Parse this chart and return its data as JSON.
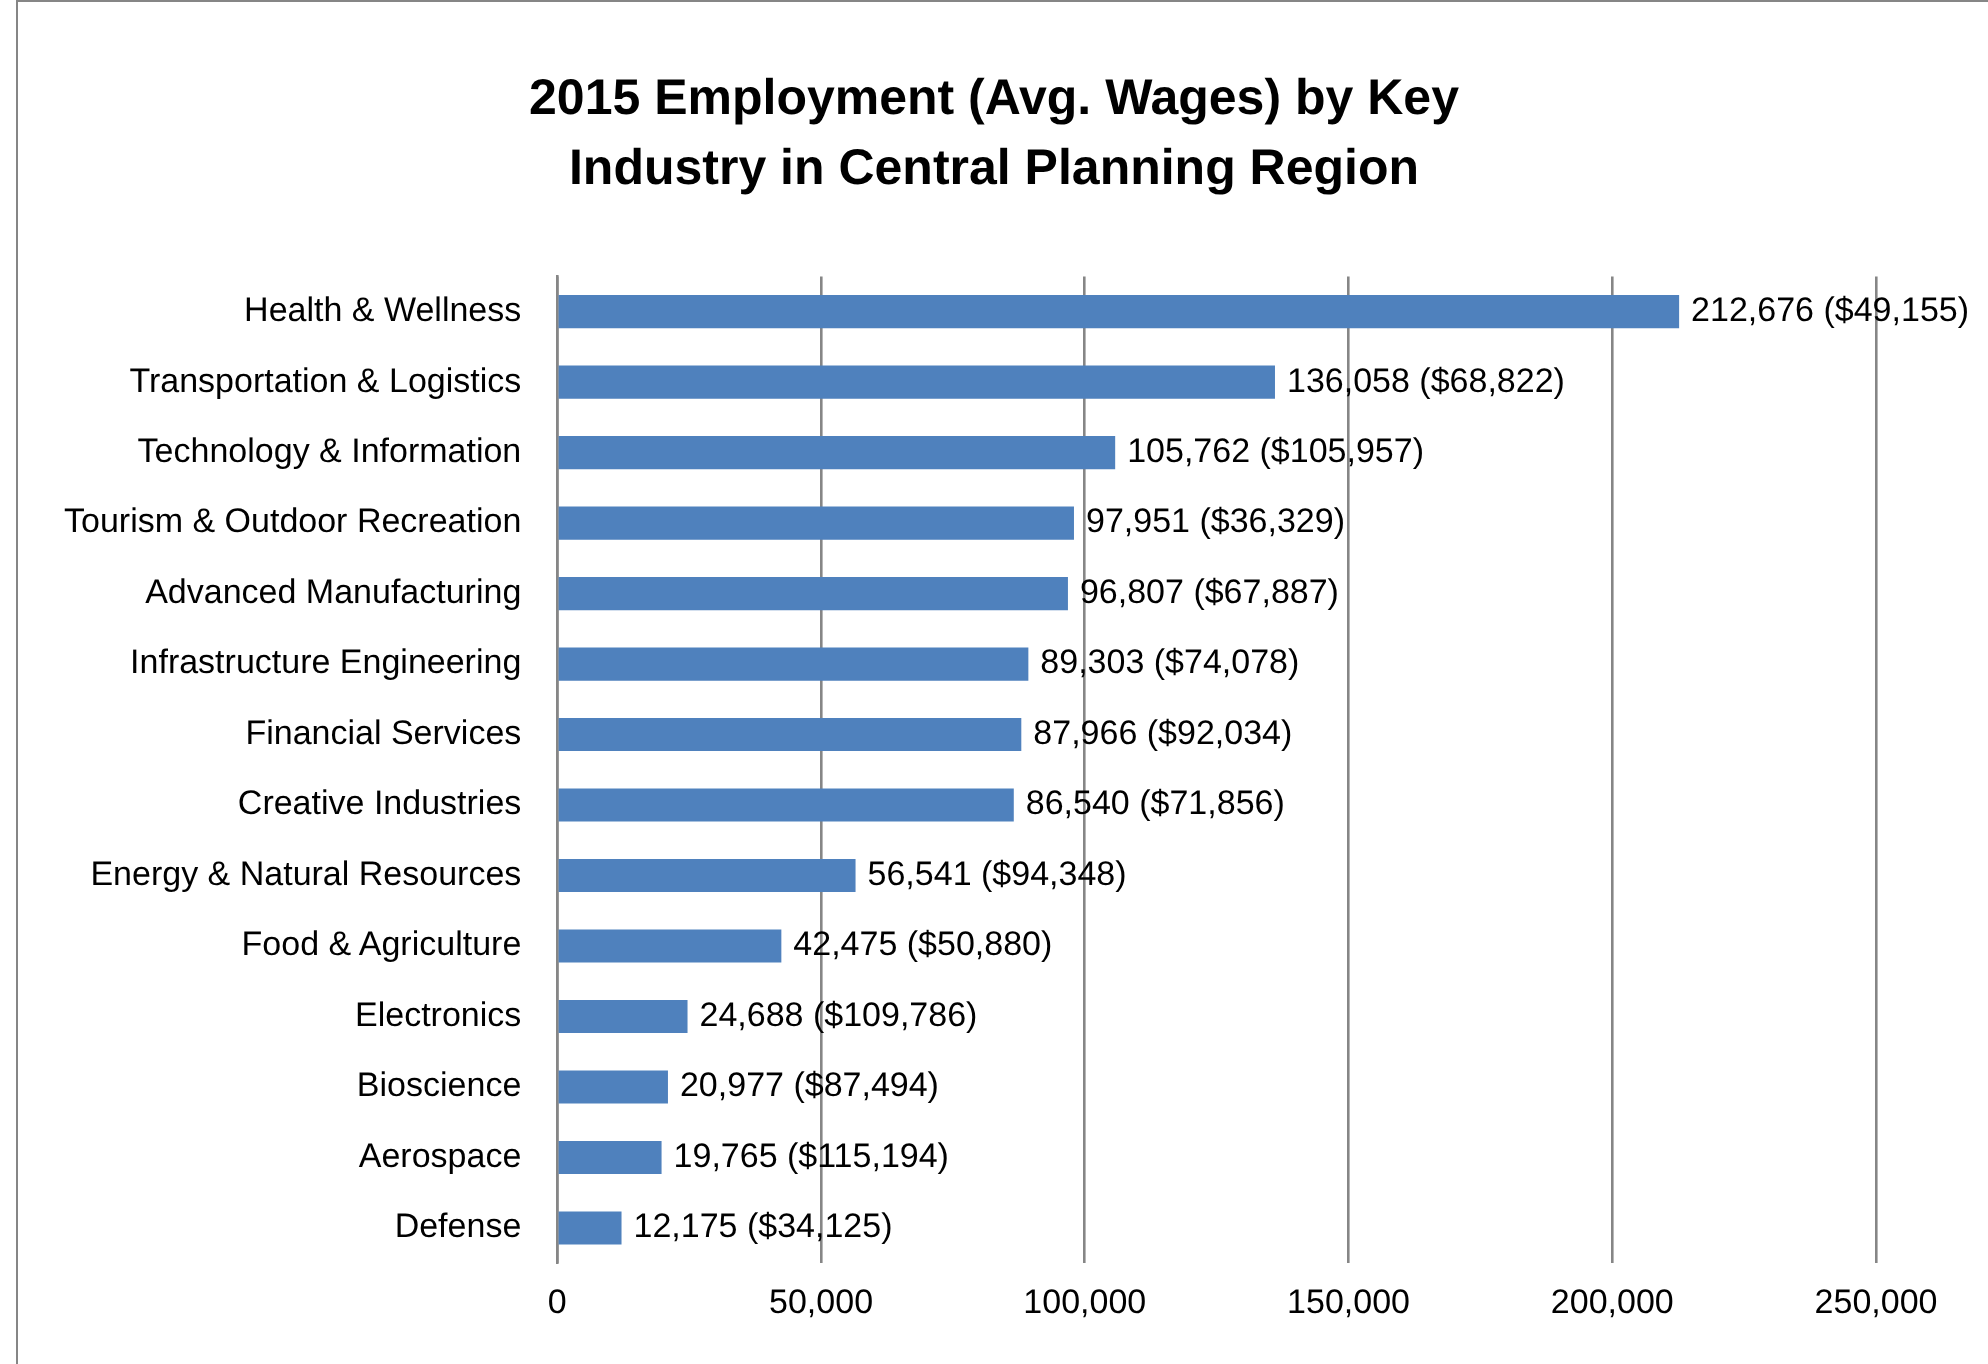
{
  "chart_data": {
    "type": "bar",
    "orientation": "horizontal",
    "title": "2015 Employment (Avg. Wages) by Key Industry in Central Planning Region",
    "categories": [
      "Health & Wellness",
      "Transportation & Logistics",
      "Technology & Information",
      "Tourism & Outdoor Recreation",
      "Advanced Manufacturing",
      "Infrastructure Engineering",
      "Financial Services",
      "Creative Industries",
      "Energy & Natural Resources",
      "Food & Agriculture",
      "Electronics",
      "Bioscience",
      "Aerospace",
      "Defense"
    ],
    "values": [
      212676,
      136058,
      105762,
      97951,
      96807,
      89303,
      87966,
      86540,
      56541,
      42475,
      24688,
      20977,
      19765,
      12175
    ],
    "value_labels": [
      "212,676 ($49,155)",
      "136,058 ($68,822)",
      "105,762 ($105,957)",
      "97,951 ($36,329)",
      "96,807 ($67,887)",
      "89,303 ($74,078)",
      "87,966 ($92,034)",
      "86,540 ($71,856)",
      "56,541 ($94,348)",
      "42,475 ($50,880)",
      "24,688 ($109,786)",
      "20,977 ($87,494)",
      "19,765 ($115,194)",
      "12,175 ($34,125)"
    ],
    "color": "#4f81bd",
    "xlim": [
      0,
      250000
    ],
    "xticks": [
      0,
      {
        "value": 50000,
        "label": "50,000"
      },
      {
        "value": 100000,
        "label": "100,000"
      },
      {
        "value": 150000,
        "label": "150,000"
      },
      {
        "value": 200000,
        "label": "200,000"
      },
      {
        "value": 250000,
        "label": "250,000"
      }
    ],
    "grid": "x",
    "legend": false
  }
}
